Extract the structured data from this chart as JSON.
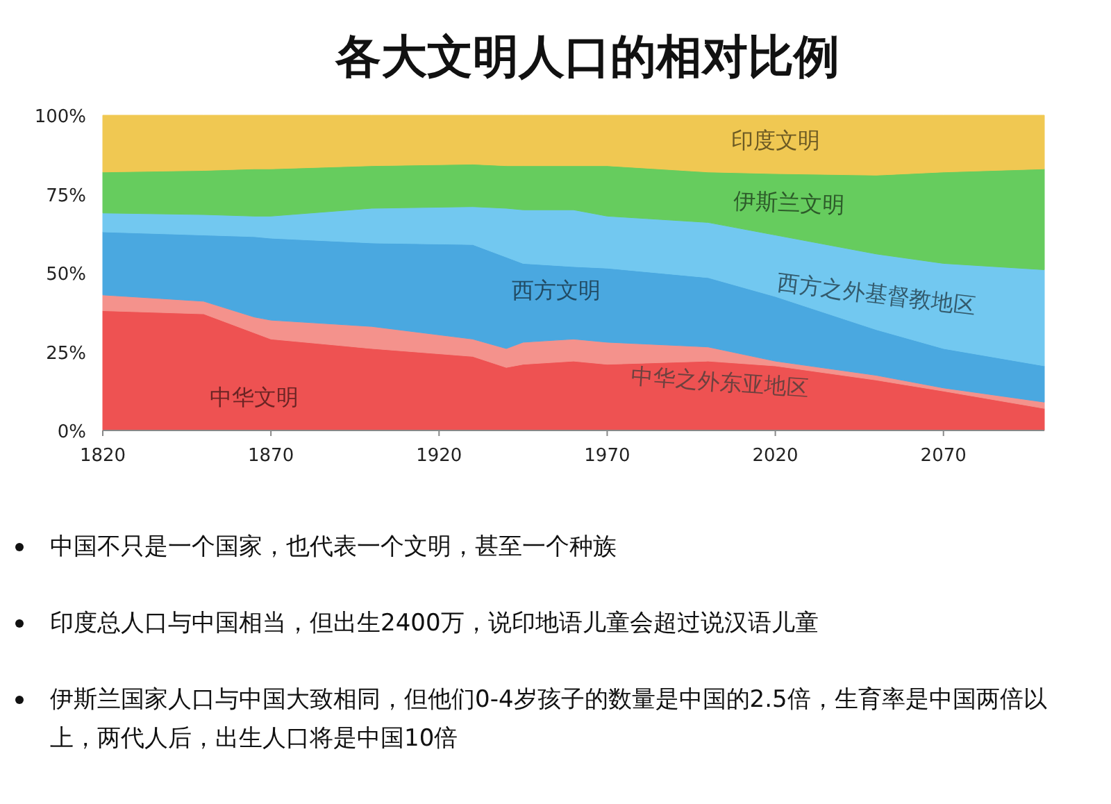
{
  "chart_data": {
    "type": "area",
    "stacked": true,
    "title": "各大文明人口的相对比例",
    "x": [
      1820,
      1850,
      1865,
      1870,
      1900,
      1930,
      1940,
      1945,
      1960,
      1970,
      2000,
      2020,
      2050,
      2070,
      2100
    ],
    "series": [
      {
        "name": "中华文明",
        "color": "#ee5252",
        "values": [
          38,
          37,
          31,
          29,
          26,
          23.5,
          20,
          21,
          22,
          21,
          22,
          20.5,
          16,
          12.5,
          7
        ]
      },
      {
        "name": "中华之外东亚地区",
        "color": "#f4928c",
        "values": [
          5,
          4,
          5,
          6,
          7,
          5.5,
          6,
          7,
          7,
          7,
          4.5,
          1.5,
          1.5,
          1,
          2
        ]
      },
      {
        "name": "西方文明",
        "color": "#4aa8e0",
        "values": [
          20,
          21,
          25.5,
          26,
          26.5,
          30,
          29,
          25,
          23,
          23.5,
          22,
          20.5,
          14.5,
          12.5,
          11.5
        ]
      },
      {
        "name": "西方之外基督教地区",
        "color": "#72c8f0",
        "values": [
          6,
          6.5,
          6.5,
          7,
          11,
          12,
          15.5,
          17,
          18,
          16.5,
          17.5,
          19.5,
          24,
          27,
          30.5
        ]
      },
      {
        "name": "伊斯兰文明",
        "color": "#66cc5e",
        "values": [
          13,
          14,
          15,
          15,
          13.5,
          13.5,
          13.5,
          14,
          14,
          16,
          16,
          19.5,
          25,
          29,
          32
        ]
      },
      {
        "name": "印度文明",
        "color": "#f0c852",
        "values": [
          18,
          17.5,
          17,
          17,
          16,
          15.5,
          16,
          16,
          16,
          16,
          18,
          18.5,
          19,
          18,
          17
        ]
      }
    ],
    "xlim": [
      1820,
      2100
    ],
    "ylim": [
      0,
      100
    ],
    "xticks": [
      1820,
      1870,
      1920,
      1970,
      2020,
      2070
    ],
    "yticks": [
      {
        "value": 0,
        "label": "0%"
      },
      {
        "value": 25,
        "label": "25%"
      },
      {
        "value": 50,
        "label": "50%"
      },
      {
        "value": 75,
        "label": "75%"
      },
      {
        "value": 100,
        "label": "100%"
      }
    ],
    "grid": false,
    "legend": false,
    "annotations": [
      "中国不只是一个国家，也代表一个文明，甚至一个种族",
      "印度总人口与中国相当，但出生2400万，说印地语儿童会超过说汉语儿童",
      "伊斯兰国家人口与中国大致相同，但他们0-4岁孩子的数量是中国的2.5倍，生育率是中国两倍以上，两代人后，出生人口将是中国10倍"
    ]
  }
}
